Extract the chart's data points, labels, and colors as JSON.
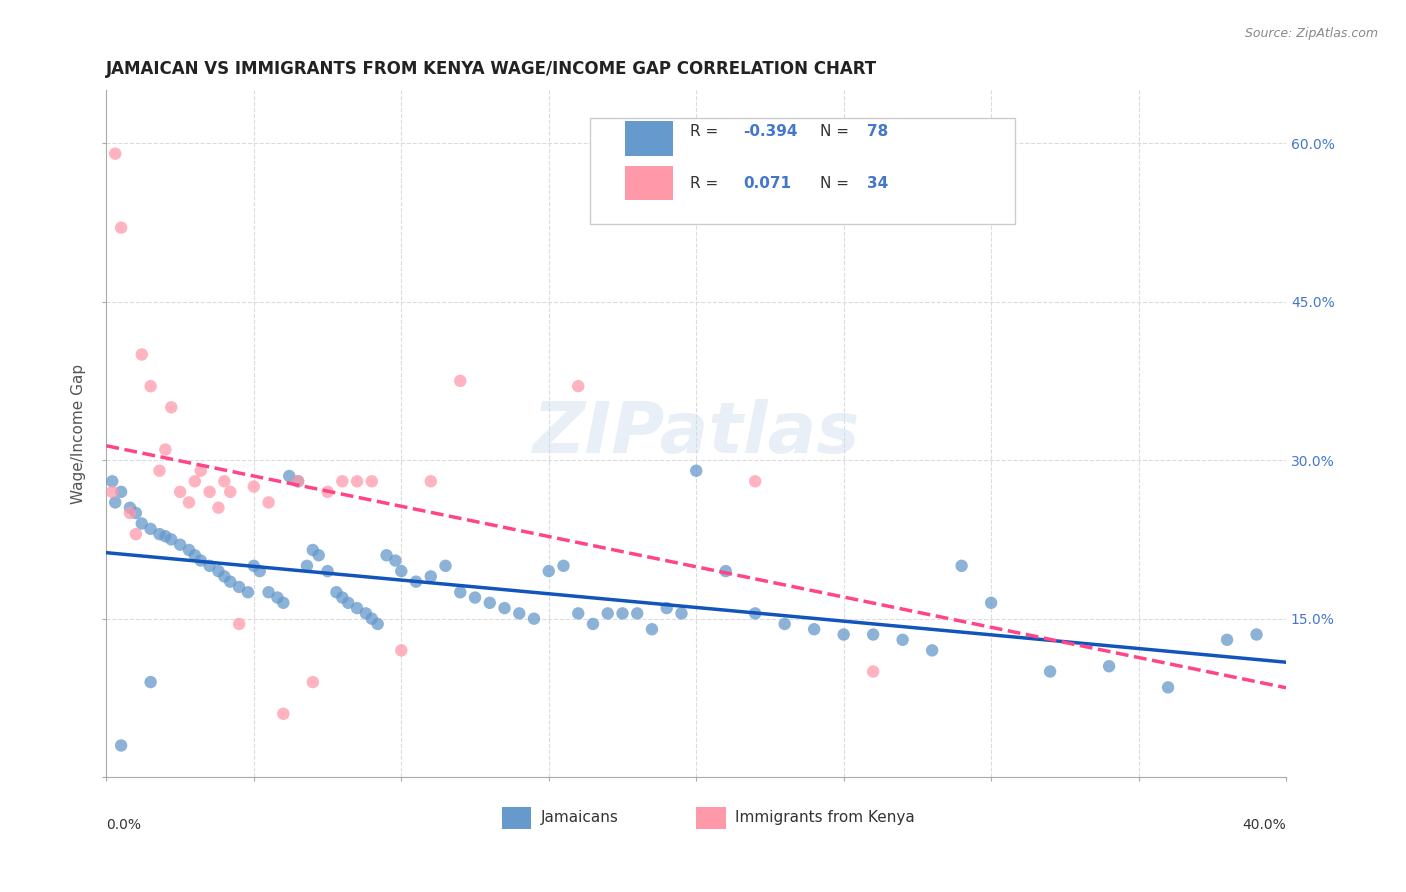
{
  "title": "JAMAICAN VS IMMIGRANTS FROM KENYA WAGE/INCOME GAP CORRELATION CHART",
  "source": "Source: ZipAtlas.com",
  "ylabel": "Wage/Income Gap",
  "yticks_right": [
    0.0,
    0.15,
    0.3,
    0.45,
    0.6
  ],
  "ytick_labels_right": [
    "",
    "15.0%",
    "30.0%",
    "45.0%",
    "60.0%"
  ],
  "xmin": 0.0,
  "xmax": 0.4,
  "ymin": 0.0,
  "ymax": 0.65,
  "blue_color": "#6699CC",
  "pink_color": "#FF99AA",
  "blue_line_color": "#1155BB",
  "pink_line_color": "#FF4488",
  "watermark": "ZIPatlas",
  "legend_R_blue": "-0.394",
  "legend_N_blue": "78",
  "legend_R_pink": "0.071",
  "legend_N_pink": "34",
  "blue_scatter_x": [
    0.002,
    0.005,
    0.003,
    0.008,
    0.01,
    0.012,
    0.015,
    0.018,
    0.02,
    0.022,
    0.025,
    0.028,
    0.03,
    0.032,
    0.035,
    0.038,
    0.04,
    0.042,
    0.045,
    0.048,
    0.05,
    0.052,
    0.055,
    0.058,
    0.06,
    0.062,
    0.065,
    0.068,
    0.07,
    0.072,
    0.075,
    0.078,
    0.08,
    0.082,
    0.085,
    0.088,
    0.09,
    0.092,
    0.095,
    0.098,
    0.1,
    0.105,
    0.11,
    0.115,
    0.12,
    0.125,
    0.13,
    0.135,
    0.14,
    0.145,
    0.15,
    0.155,
    0.16,
    0.165,
    0.17,
    0.175,
    0.18,
    0.185,
    0.19,
    0.195,
    0.2,
    0.21,
    0.22,
    0.23,
    0.24,
    0.25,
    0.26,
    0.27,
    0.28,
    0.29,
    0.3,
    0.32,
    0.34,
    0.36,
    0.38,
    0.39,
    0.005,
    0.015
  ],
  "blue_scatter_y": [
    0.28,
    0.27,
    0.26,
    0.255,
    0.25,
    0.24,
    0.235,
    0.23,
    0.228,
    0.225,
    0.22,
    0.215,
    0.21,
    0.205,
    0.2,
    0.195,
    0.19,
    0.185,
    0.18,
    0.175,
    0.2,
    0.195,
    0.175,
    0.17,
    0.165,
    0.285,
    0.28,
    0.2,
    0.215,
    0.21,
    0.195,
    0.175,
    0.17,
    0.165,
    0.16,
    0.155,
    0.15,
    0.145,
    0.21,
    0.205,
    0.195,
    0.185,
    0.19,
    0.2,
    0.175,
    0.17,
    0.165,
    0.16,
    0.155,
    0.15,
    0.195,
    0.2,
    0.155,
    0.145,
    0.155,
    0.155,
    0.155,
    0.14,
    0.16,
    0.155,
    0.29,
    0.195,
    0.155,
    0.145,
    0.14,
    0.135,
    0.135,
    0.13,
    0.12,
    0.2,
    0.165,
    0.1,
    0.105,
    0.085,
    0.13,
    0.135,
    0.03,
    0.09
  ],
  "pink_scatter_x": [
    0.002,
    0.003,
    0.005,
    0.008,
    0.01,
    0.012,
    0.015,
    0.018,
    0.02,
    0.022,
    0.025,
    0.028,
    0.03,
    0.032,
    0.035,
    0.038,
    0.04,
    0.042,
    0.045,
    0.05,
    0.055,
    0.06,
    0.065,
    0.07,
    0.075,
    0.08,
    0.085,
    0.09,
    0.1,
    0.11,
    0.12,
    0.16,
    0.22,
    0.26
  ],
  "pink_scatter_y": [
    0.27,
    0.59,
    0.52,
    0.25,
    0.23,
    0.4,
    0.37,
    0.29,
    0.31,
    0.35,
    0.27,
    0.26,
    0.28,
    0.29,
    0.27,
    0.255,
    0.28,
    0.27,
    0.145,
    0.275,
    0.26,
    0.06,
    0.28,
    0.09,
    0.27,
    0.28,
    0.28,
    0.28,
    0.12,
    0.28,
    0.375,
    0.37,
    0.28,
    0.1
  ]
}
